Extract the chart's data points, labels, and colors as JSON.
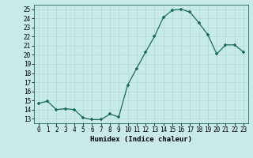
{
  "x": [
    0,
    1,
    2,
    3,
    4,
    5,
    6,
    7,
    8,
    9,
    10,
    11,
    12,
    13,
    14,
    15,
    16,
    17,
    18,
    19,
    20,
    21,
    22,
    23
  ],
  "y": [
    14.7,
    14.9,
    14.0,
    14.1,
    14.0,
    13.1,
    12.9,
    12.9,
    13.5,
    13.2,
    16.7,
    18.5,
    20.3,
    22.0,
    24.1,
    24.9,
    25.0,
    24.7,
    23.5,
    22.2,
    20.1,
    21.1,
    21.1,
    20.3
  ],
  "line_color": "#1a6b5a",
  "marker_color": "#1a6b5a",
  "bg_color": "#c8eae8",
  "grid_color": "#b0d8d5",
  "xlabel": "Humidex (Indice chaleur)",
  "xlim": [
    -0.5,
    23.5
  ],
  "ylim": [
    12.5,
    25.5
  ],
  "yticks": [
    13,
    14,
    15,
    16,
    17,
    18,
    19,
    20,
    21,
    22,
    23,
    24,
    25
  ],
  "xticks": [
    0,
    1,
    2,
    3,
    4,
    5,
    6,
    7,
    8,
    9,
    10,
    11,
    12,
    13,
    14,
    15,
    16,
    17,
    18,
    19,
    20,
    21,
    22,
    23
  ],
  "label_fontsize": 6.5,
  "tick_fontsize": 5.5
}
